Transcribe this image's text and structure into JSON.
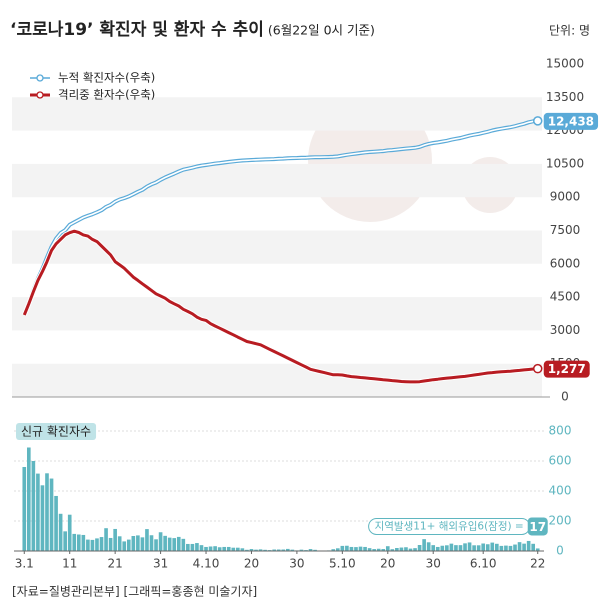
{
  "source": "[자료=질병관리본부] [그래픽=홍종현 미술기자]",
  "chart_data": [
    {
      "type": "line",
      "title": "‘코로나19’ 확진자 및 환자 수 추이",
      "subtitle": "(6월22일 0시 기준)",
      "unit": "단위: 명",
      "ylim": [
        0,
        15000
      ],
      "yticks": [
        0,
        1500,
        3000,
        4500,
        6000,
        7500,
        9000,
        10500,
        12000,
        13500,
        15000
      ],
      "series": [
        {
          "name": "누적 확진자수(우축)",
          "color": "#5aaad8",
          "values": [
            3736,
            4212,
            4812,
            5328,
            5766,
            6284,
            6767,
            7134,
            7382,
            7513,
            7755,
            7869,
            7979,
            8086,
            8162,
            8236,
            8320,
            8413,
            8565,
            8652,
            8799,
            8897,
            8961,
            9037,
            9137,
            9241,
            9332,
            9478,
            9583,
            9661,
            9786,
            9887,
            9976,
            10062,
            10156,
            10237,
            10284,
            10331,
            10384,
            10423,
            10450,
            10480,
            10512,
            10537,
            10564,
            10591,
            10613,
            10635,
            10653,
            10661,
            10674,
            10683,
            10694,
            10702,
            10708,
            10718,
            10728,
            10738,
            10752,
            10761,
            10765,
            10774,
            10780,
            10793,
            10801,
            10804,
            10806,
            10810,
            10822,
            10840,
            10874,
            10909,
            10936,
            10962,
            10991,
            11018,
            11037,
            11050,
            11065,
            11078,
            11110,
            11122,
            11142,
            11165,
            11190,
            11206,
            11225,
            11265,
            11344,
            11402,
            11441,
            11468,
            11503,
            11541,
            11590,
            11629,
            11668,
            11719,
            11776,
            11814,
            11852,
            11902,
            11947,
            12003,
            12051,
            12085,
            12121,
            12155,
            12198,
            12257,
            12306,
            12373,
            12421,
            12438
          ],
          "value_labels": [
            null,
            null,
            null,
            null,
            null,
            null,
            null,
            null,
            null,
            null,
            null,
            null,
            null,
            null,
            null,
            null,
            null,
            null,
            null,
            null,
            null,
            null,
            null,
            null,
            null,
            null,
            null,
            null,
            null,
            null,
            null,
            null,
            null,
            null,
            null,
            null,
            null,
            null,
            null,
            null,
            null,
            null,
            null,
            null,
            null,
            null,
            null,
            null,
            null,
            null,
            null,
            null,
            null,
            null,
            null,
            null,
            null,
            null,
            null,
            null,
            null,
            null,
            null,
            null,
            null,
            null,
            null,
            null,
            null,
            null,
            null,
            null,
            null,
            null,
            null,
            null,
            null,
            null,
            null,
            null,
            null,
            null,
            null,
            null,
            null,
            null,
            null,
            null,
            null,
            null,
            null,
            null,
            null,
            null,
            null,
            null,
            null,
            null,
            null,
            null,
            null,
            null,
            null,
            null,
            null,
            null,
            null,
            null,
            null,
            null,
            null,
            null,
            null,
            "12,438"
          ]
        },
        {
          "name": "격리중 환자수(우축)",
          "color": "#b81c22",
          "values": [
            3700,
            4200,
            4750,
            5250,
            5650,
            6100,
            6600,
            6900,
            7100,
            7300,
            7400,
            7470,
            7410,
            7300,
            7250,
            7100,
            7000,
            6800,
            6600,
            6400,
            6100,
            5950,
            5800,
            5600,
            5400,
            5250,
            5100,
            4950,
            4800,
            4650,
            4550,
            4450,
            4300,
            4200,
            4100,
            3950,
            3850,
            3750,
            3600,
            3500,
            3450,
            3300,
            3200,
            3100,
            3000,
            2900,
            2800,
            2700,
            2600,
            2500,
            2450,
            2400,
            2350,
            2250,
            2150,
            2050,
            1950,
            1850,
            1750,
            1650,
            1550,
            1450,
            1350,
            1250,
            1200,
            1150,
            1100,
            1050,
            1000,
            1000,
            990,
            950,
            920,
            900,
            880,
            860,
            840,
            820,
            800,
            780,
            760,
            740,
            720,
            700,
            690,
            680,
            680,
            690,
            720,
            750,
            780,
            800,
            830,
            850,
            870,
            890,
            910,
            930,
            960,
            990,
            1020,
            1050,
            1080,
            1100,
            1120,
            1140,
            1150,
            1160,
            1180,
            1200,
            1220,
            1240,
            1260,
            1277
          ],
          "value_labels": [
            null,
            null,
            null,
            null,
            null,
            null,
            null,
            null,
            null,
            null,
            null,
            null,
            null,
            null,
            null,
            null,
            null,
            null,
            null,
            null,
            null,
            null,
            null,
            null,
            null,
            null,
            null,
            null,
            null,
            null,
            null,
            null,
            null,
            null,
            null,
            null,
            null,
            null,
            null,
            null,
            null,
            null,
            null,
            null,
            null,
            null,
            null,
            null,
            null,
            null,
            null,
            null,
            null,
            null,
            null,
            null,
            null,
            null,
            null,
            null,
            null,
            null,
            null,
            null,
            null,
            null,
            null,
            null,
            null,
            null,
            null,
            null,
            null,
            null,
            null,
            null,
            null,
            null,
            null,
            null,
            null,
            null,
            null,
            null,
            null,
            null,
            null,
            null,
            null,
            null,
            null,
            null,
            null,
            null,
            null,
            null,
            null,
            null,
            null,
            null,
            null,
            null,
            null,
            null,
            null,
            null,
            null,
            null,
            null,
            null,
            null,
            null,
            null,
            "1,277"
          ]
        }
      ]
    },
    {
      "type": "bar",
      "title": "신규 확진자수",
      "color": "#5fb6c0",
      "annotation": "지역발생11+ 해외유입6(잠정) =",
      "ylim": [
        0,
        800
      ],
      "yticks": [
        0,
        200,
        400,
        600,
        800
      ],
      "categories": [
        "3.1",
        null,
        null,
        null,
        null,
        null,
        null,
        null,
        null,
        null,
        "11",
        null,
        null,
        null,
        null,
        null,
        null,
        null,
        null,
        null,
        "21",
        null,
        null,
        null,
        null,
        null,
        null,
        null,
        null,
        null,
        "31",
        null,
        null,
        null,
        null,
        null,
        null,
        null,
        null,
        null,
        "4.10",
        null,
        null,
        null,
        null,
        null,
        null,
        null,
        null,
        null,
        "20",
        null,
        null,
        null,
        null,
        null,
        null,
        null,
        null,
        null,
        "30",
        null,
        null,
        null,
        null,
        null,
        null,
        null,
        null,
        null,
        "5.10",
        null,
        null,
        null,
        null,
        null,
        null,
        null,
        null,
        null,
        "20",
        null,
        null,
        null,
        null,
        null,
        null,
        null,
        null,
        null,
        "30",
        null,
        null,
        null,
        null,
        null,
        null,
        null,
        null,
        null,
        null,
        "6.10",
        null,
        null,
        null,
        null,
        null,
        null,
        null,
        null,
        null,
        null,
        null,
        "22"
      ],
      "values": [
        560,
        690,
        600,
        516,
        438,
        518,
        483,
        367,
        248,
        131,
        242,
        114,
        110,
        107,
        76,
        74,
        84,
        93,
        152,
        87,
        147,
        98,
        64,
        76,
        100,
        104,
        91,
        146,
        105,
        78,
        125,
        101,
        89,
        86,
        94,
        81,
        47,
        47,
        53,
        39,
        27,
        30,
        32,
        25,
        27,
        27,
        22,
        22,
        18,
        8,
        13,
        9,
        11,
        8,
        6,
        10,
        10,
        10,
        14,
        9,
        4,
        9,
        6,
        13,
        8,
        3,
        2,
        4,
        12,
        18,
        34,
        35,
        27,
        26,
        29,
        27,
        19,
        13,
        15,
        13,
        32,
        12,
        20,
        23,
        25,
        16,
        19,
        40,
        79,
        58,
        39,
        27,
        35,
        38,
        49,
        39,
        39,
        51,
        57,
        38,
        38,
        50,
        45,
        56,
        48,
        34,
        36,
        34,
        43,
        59,
        49,
        67,
        48,
        17
      ]
    }
  ]
}
